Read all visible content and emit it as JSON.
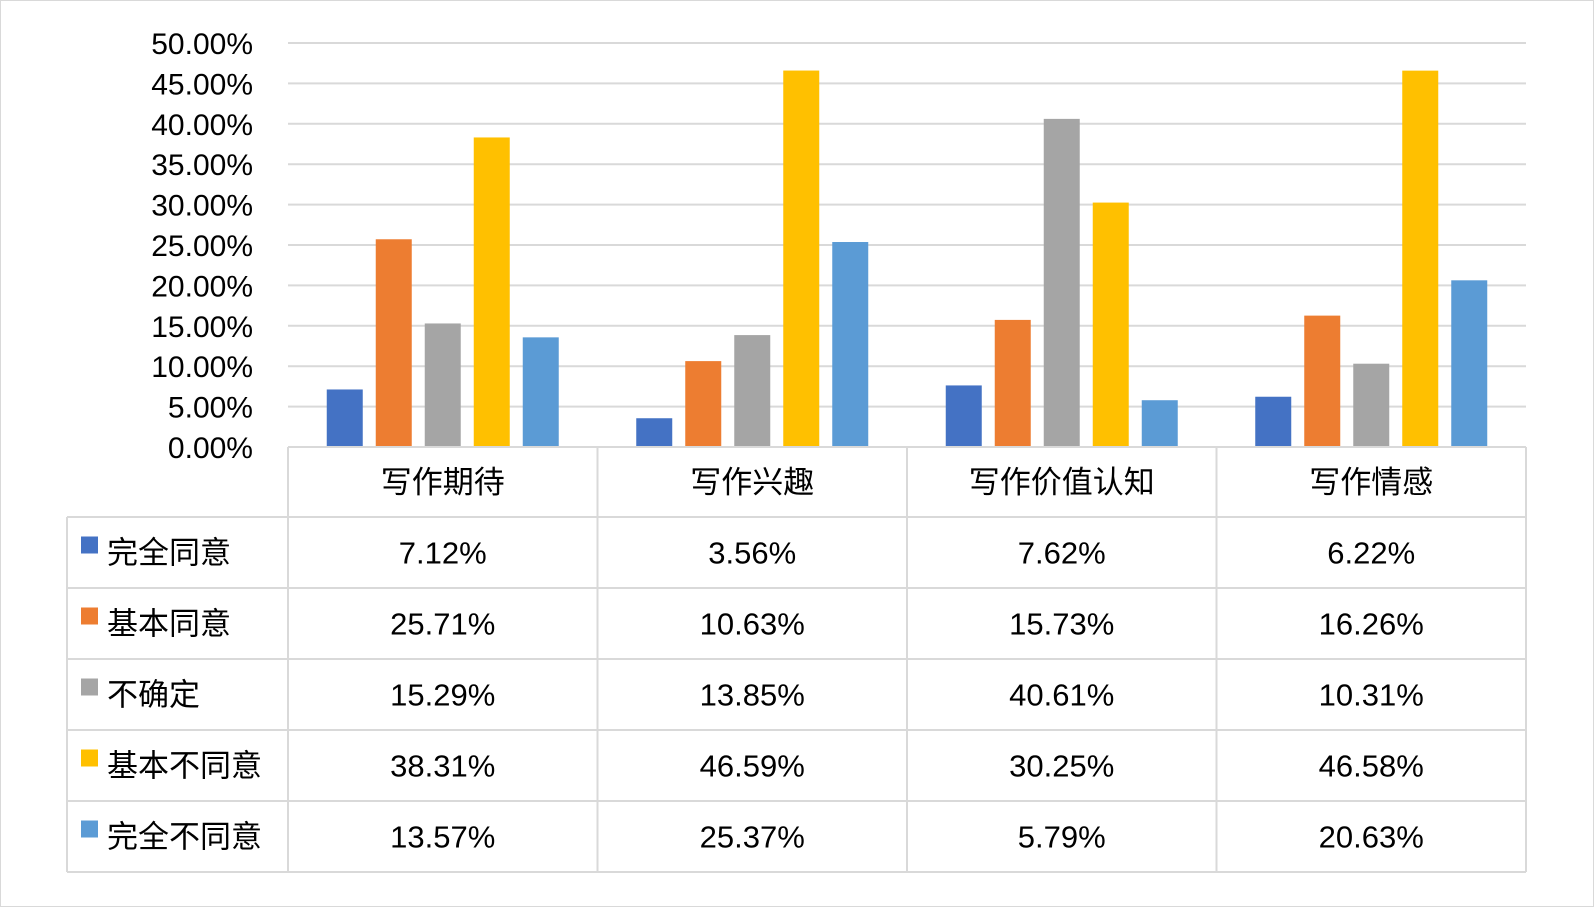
{
  "chart_data": {
    "type": "bar",
    "categories": [
      "写作期待",
      "写作兴趣",
      "写作价值认知",
      "写作情感"
    ],
    "series": [
      {
        "name": "完全同意",
        "color": "#4472C4",
        "values": [
          7.12,
          3.56,
          7.62,
          6.22
        ],
        "labels": [
          "7.12%",
          "3.56%",
          "7.62%",
          "6.22%"
        ]
      },
      {
        "name": "基本同意",
        "color": "#ED7D31",
        "values": [
          25.71,
          10.63,
          15.73,
          16.26
        ],
        "labels": [
          "25.71%",
          "10.63%",
          "15.73%",
          "16.26%"
        ]
      },
      {
        "name": "不确定",
        "color": "#A5A5A5",
        "values": [
          15.29,
          13.85,
          40.61,
          10.31
        ],
        "labels": [
          "15.29%",
          "13.85%",
          "40.61%",
          "10.31%"
        ]
      },
      {
        "name": "基本不同意",
        "color": "#FFC000",
        "values": [
          38.31,
          46.59,
          30.25,
          46.58
        ],
        "labels": [
          "38.31%",
          "46.59%",
          "30.25%",
          "46.58%"
        ]
      },
      {
        "name": "完全不同意",
        "color": "#5B9BD5",
        "values": [
          13.57,
          25.37,
          5.79,
          20.63
        ],
        "labels": [
          "13.57%",
          "25.37%",
          "5.79%",
          "20.63%"
        ]
      }
    ],
    "ylim": [
      0,
      50
    ],
    "yticks": [
      "0.00%",
      "5.00%",
      "10.00%",
      "15.00%",
      "20.00%",
      "25.00%",
      "30.00%",
      "35.00%",
      "40.00%",
      "45.00%",
      "50.00%"
    ],
    "grid": true,
    "legend": "data-table",
    "title": "",
    "xlabel": "",
    "ylabel": ""
  }
}
